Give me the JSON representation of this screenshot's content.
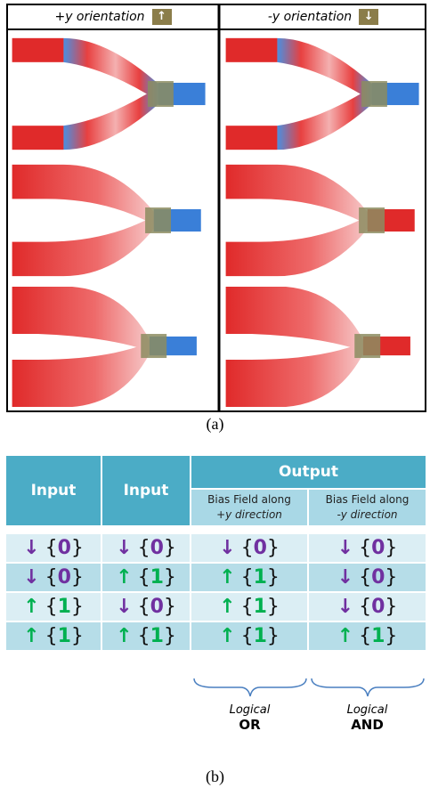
{
  "panel_a": {
    "headers": [
      {
        "text": "+y orientation",
        "icon": "↑"
      },
      {
        "text": "-y orientation",
        "icon": "↓"
      }
    ],
    "caption": "(a)"
  },
  "table": {
    "header": {
      "input1": "Input",
      "input2": "Input",
      "output": "Output",
      "bias_plus": [
        "Bias Field along",
        "+y direction"
      ],
      "bias_minus": [
        "Bias Field along",
        "-y direction"
      ]
    },
    "rows": [
      [
        {
          "arrow": "↓",
          "open": "{",
          "digit": "0",
          "close": "}",
          "color": "#7030a0"
        },
        {
          "arrow": "↓",
          "open": "{",
          "digit": "0",
          "close": "}",
          "color": "#7030a0"
        },
        {
          "arrow": "↓",
          "open": "{",
          "digit": "0",
          "close": "}",
          "color": "#7030a0"
        },
        {
          "arrow": "↓",
          "open": "{",
          "digit": "0",
          "close": "}",
          "color": "#7030a0"
        }
      ],
      [
        {
          "arrow": "↓",
          "open": "{",
          "digit": "0",
          "close": "}",
          "color": "#7030a0"
        },
        {
          "arrow": "↑",
          "open": "{",
          "digit": "1",
          "close": "}",
          "color": "#00b050"
        },
        {
          "arrow": "↑",
          "open": "{",
          "digit": "1",
          "close": "}",
          "color": "#00b050"
        },
        {
          "arrow": "↓",
          "open": "{",
          "digit": "0",
          "close": "}",
          "color": "#7030a0"
        }
      ],
      [
        {
          "arrow": "↑",
          "open": "{",
          "digit": "1",
          "close": "}",
          "color": "#00b050"
        },
        {
          "arrow": "↓",
          "open": "{",
          "digit": "0",
          "close": "}",
          "color": "#7030a0"
        },
        {
          "arrow": "↑",
          "open": "{",
          "digit": "1",
          "close": "}",
          "color": "#00b050"
        },
        {
          "arrow": "↓",
          "open": "{",
          "digit": "0",
          "close": "}",
          "color": "#7030a0"
        }
      ],
      [
        {
          "arrow": "↑",
          "open": "{",
          "digit": "1",
          "close": "}",
          "color": "#00b050"
        },
        {
          "arrow": "↑",
          "open": "{",
          "digit": "1",
          "close": "}",
          "color": "#00b050"
        },
        {
          "arrow": "↑",
          "open": "{",
          "digit": "1",
          "close": "}",
          "color": "#00b050"
        },
        {
          "arrow": "↑",
          "open": "{",
          "digit": "1",
          "close": "}",
          "color": "#00b050"
        }
      ]
    ]
  },
  "annotations": [
    {
      "top": "Logical",
      "bottom": "OR"
    },
    {
      "top": "Logical",
      "bottom": "AND"
    }
  ],
  "caption": "(b)"
}
